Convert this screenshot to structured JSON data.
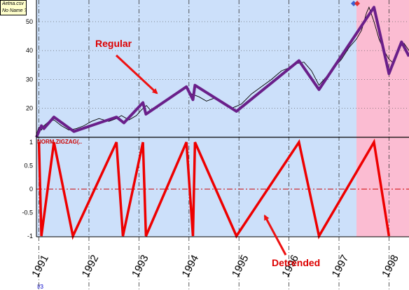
{
  "legend": {
    "file": "Aetna.csv",
    "name": "No Name ?"
  },
  "indicator_label": "NORM ZIGZAG(..",
  "annotations": {
    "upper": "Regular",
    "lower": "Detrended"
  },
  "corner_mark": "I/3",
  "colors": {
    "panel_blue": "#cce0fa",
    "panel_pink": "#fbbcd2",
    "price": "#000000",
    "zigzag_upper": "#6a1f8a",
    "zigzag_lower": "#ee0000",
    "arrow": "#ee1111",
    "zero_line": "#cc0000"
  },
  "chart_data": [
    {
      "type": "line",
      "panel": "upper",
      "x_unit": "year",
      "xlim": [
        1990.95,
        1998.4
      ],
      "ylim": [
        10,
        57
      ],
      "yticks": [
        20,
        30,
        40,
        50
      ],
      "pink_region_start": 1997.35,
      "series": [
        {
          "kind": "price",
          "x": [
            1990.95,
            1991.0,
            1991.05,
            1991.1,
            1991.2,
            1991.3,
            1991.45,
            1991.6,
            1991.75,
            1991.9,
            1992.05,
            1992.2,
            1992.4,
            1992.55,
            1992.65,
            1992.8,
            1992.95,
            1993.05,
            1993.15,
            1993.25,
            1993.45,
            1993.65,
            1993.85,
            1993.95,
            1994.05,
            1994.2,
            1994.35,
            1994.5,
            1994.65,
            1994.85,
            1995.05,
            1995.25,
            1995.45,
            1995.65,
            1995.85,
            1996.0,
            1996.15,
            1996.3,
            1996.45,
            1996.6,
            1996.75,
            1996.9,
            1997.05,
            1997.2,
            1997.35,
            1997.45,
            1997.55,
            1997.6,
            1997.7,
            1997.8,
            1997.9,
            1998.0,
            1998.1,
            1998.2,
            1998.3,
            1998.4
          ],
          "y": [
            11,
            13.5,
            12.5,
            14,
            15.5,
            16,
            14,
            12.5,
            13,
            14,
            15.5,
            16.5,
            15.5,
            16.5,
            17.5,
            16,
            17.5,
            19.5,
            21,
            19,
            22,
            24,
            26,
            27.5,
            25,
            24,
            22.5,
            23.5,
            22,
            20,
            21.5,
            25,
            27.5,
            30,
            33,
            34,
            35.5,
            36,
            33,
            28,
            31,
            34,
            37,
            41,
            44,
            47,
            53,
            55,
            50,
            44,
            40,
            37,
            35.5,
            41,
            42.5,
            40
          ]
        },
        {
          "kind": "zigzag",
          "x": [
            1990.95,
            1991.05,
            1991.1,
            1991.3,
            1991.7,
            1992.55,
            1992.7,
            1993.08,
            1993.14,
            1993.95,
            1994.08,
            1994.12,
            1994.95,
            1996.2,
            1996.6,
            1997.7,
            1998.0,
            1998.25,
            1998.4
          ],
          "y": [
            10,
            14,
            13,
            17,
            12,
            17,
            15,
            22,
            18,
            27.5,
            23,
            28,
            19,
            36.5,
            26.5,
            55,
            32,
            43,
            38
          ]
        }
      ]
    },
    {
      "type": "line",
      "panel": "lower",
      "title": "NORM ZIGZAG(..",
      "xlim": [
        1990.95,
        1998.4
      ],
      "ylim": [
        -1,
        1
      ],
      "yticks": [
        -1,
        -0.5,
        0,
        0.5,
        1
      ],
      "xticks": [
        "1991",
        "1992",
        "1993",
        "1994",
        "1995",
        "1996",
        "1997",
        "1998"
      ],
      "tick_years": [
        1991,
        1992,
        1993,
        1994,
        1995,
        1996,
        1997,
        1998
      ],
      "series": [
        {
          "kind": "detrended",
          "x": [
            1991.0,
            1991.05,
            1991.3,
            1991.68,
            1992.55,
            1992.68,
            1993.08,
            1993.14,
            1993.95,
            1994.08,
            1994.12,
            1994.95,
            1996.2,
            1996.6,
            1997.7,
            1998.0
          ],
          "y": [
            1,
            -1,
            1,
            -1,
            1,
            -1,
            1,
            -1,
            1,
            -1,
            1,
            -1,
            1,
            -1,
            1,
            -1
          ]
        }
      ]
    }
  ]
}
